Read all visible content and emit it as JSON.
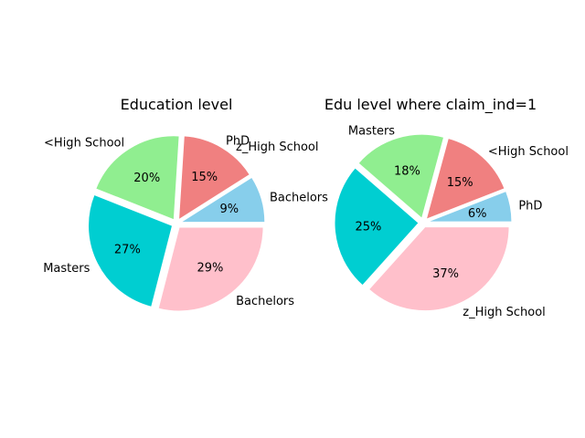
{
  "chart_data": [
    {
      "type": "pie",
      "title": "Education level",
      "start_angle": 0,
      "direction": "counterclockwise",
      "slices": [
        {
          "label": "Bachelors",
          "value": 9,
          "pct_label": "9%",
          "color": "#87ceeb",
          "explode": true
        },
        {
          "label": "PhD",
          "value": 15,
          "pct_label": "15%",
          "color": "#f08080",
          "explode": true
        },
        {
          "label": "<High School",
          "value": 20,
          "pct_label": "20%",
          "color": "#90ee90",
          "explode": true
        },
        {
          "label": "Masters",
          "value": 27,
          "pct_label": "27%",
          "color": "#00ced1",
          "explode": true
        },
        {
          "label": "Bachelors",
          "value": 29,
          "pct_label": "29%",
          "color": "#ffc0cb",
          "explode": true
        }
      ],
      "extra_labels": [
        "z_High School"
      ]
    },
    {
      "type": "pie",
      "title": "Edu level where claim_ind=1",
      "start_angle": 0,
      "direction": "counterclockwise",
      "slices": [
        {
          "label": "PhD",
          "value": 6,
          "pct_label": "6%",
          "color": "#87ceeb",
          "explode": true
        },
        {
          "label": "<High School",
          "value": 15,
          "pct_label": "15%",
          "color": "#f08080",
          "explode": true
        },
        {
          "label": "Masters",
          "value": 18,
          "pct_label": "18%",
          "color": "#90ee90",
          "explode": true
        },
        {
          "label": "",
          "value": 25,
          "pct_label": "25%",
          "color": "#00ced1",
          "explode": true
        },
        {
          "label": "z_High School",
          "value": 37,
          "pct_label": "37%",
          "color": "#ffc0cb",
          "explode": true
        }
      ],
      "extra_labels": []
    }
  ]
}
